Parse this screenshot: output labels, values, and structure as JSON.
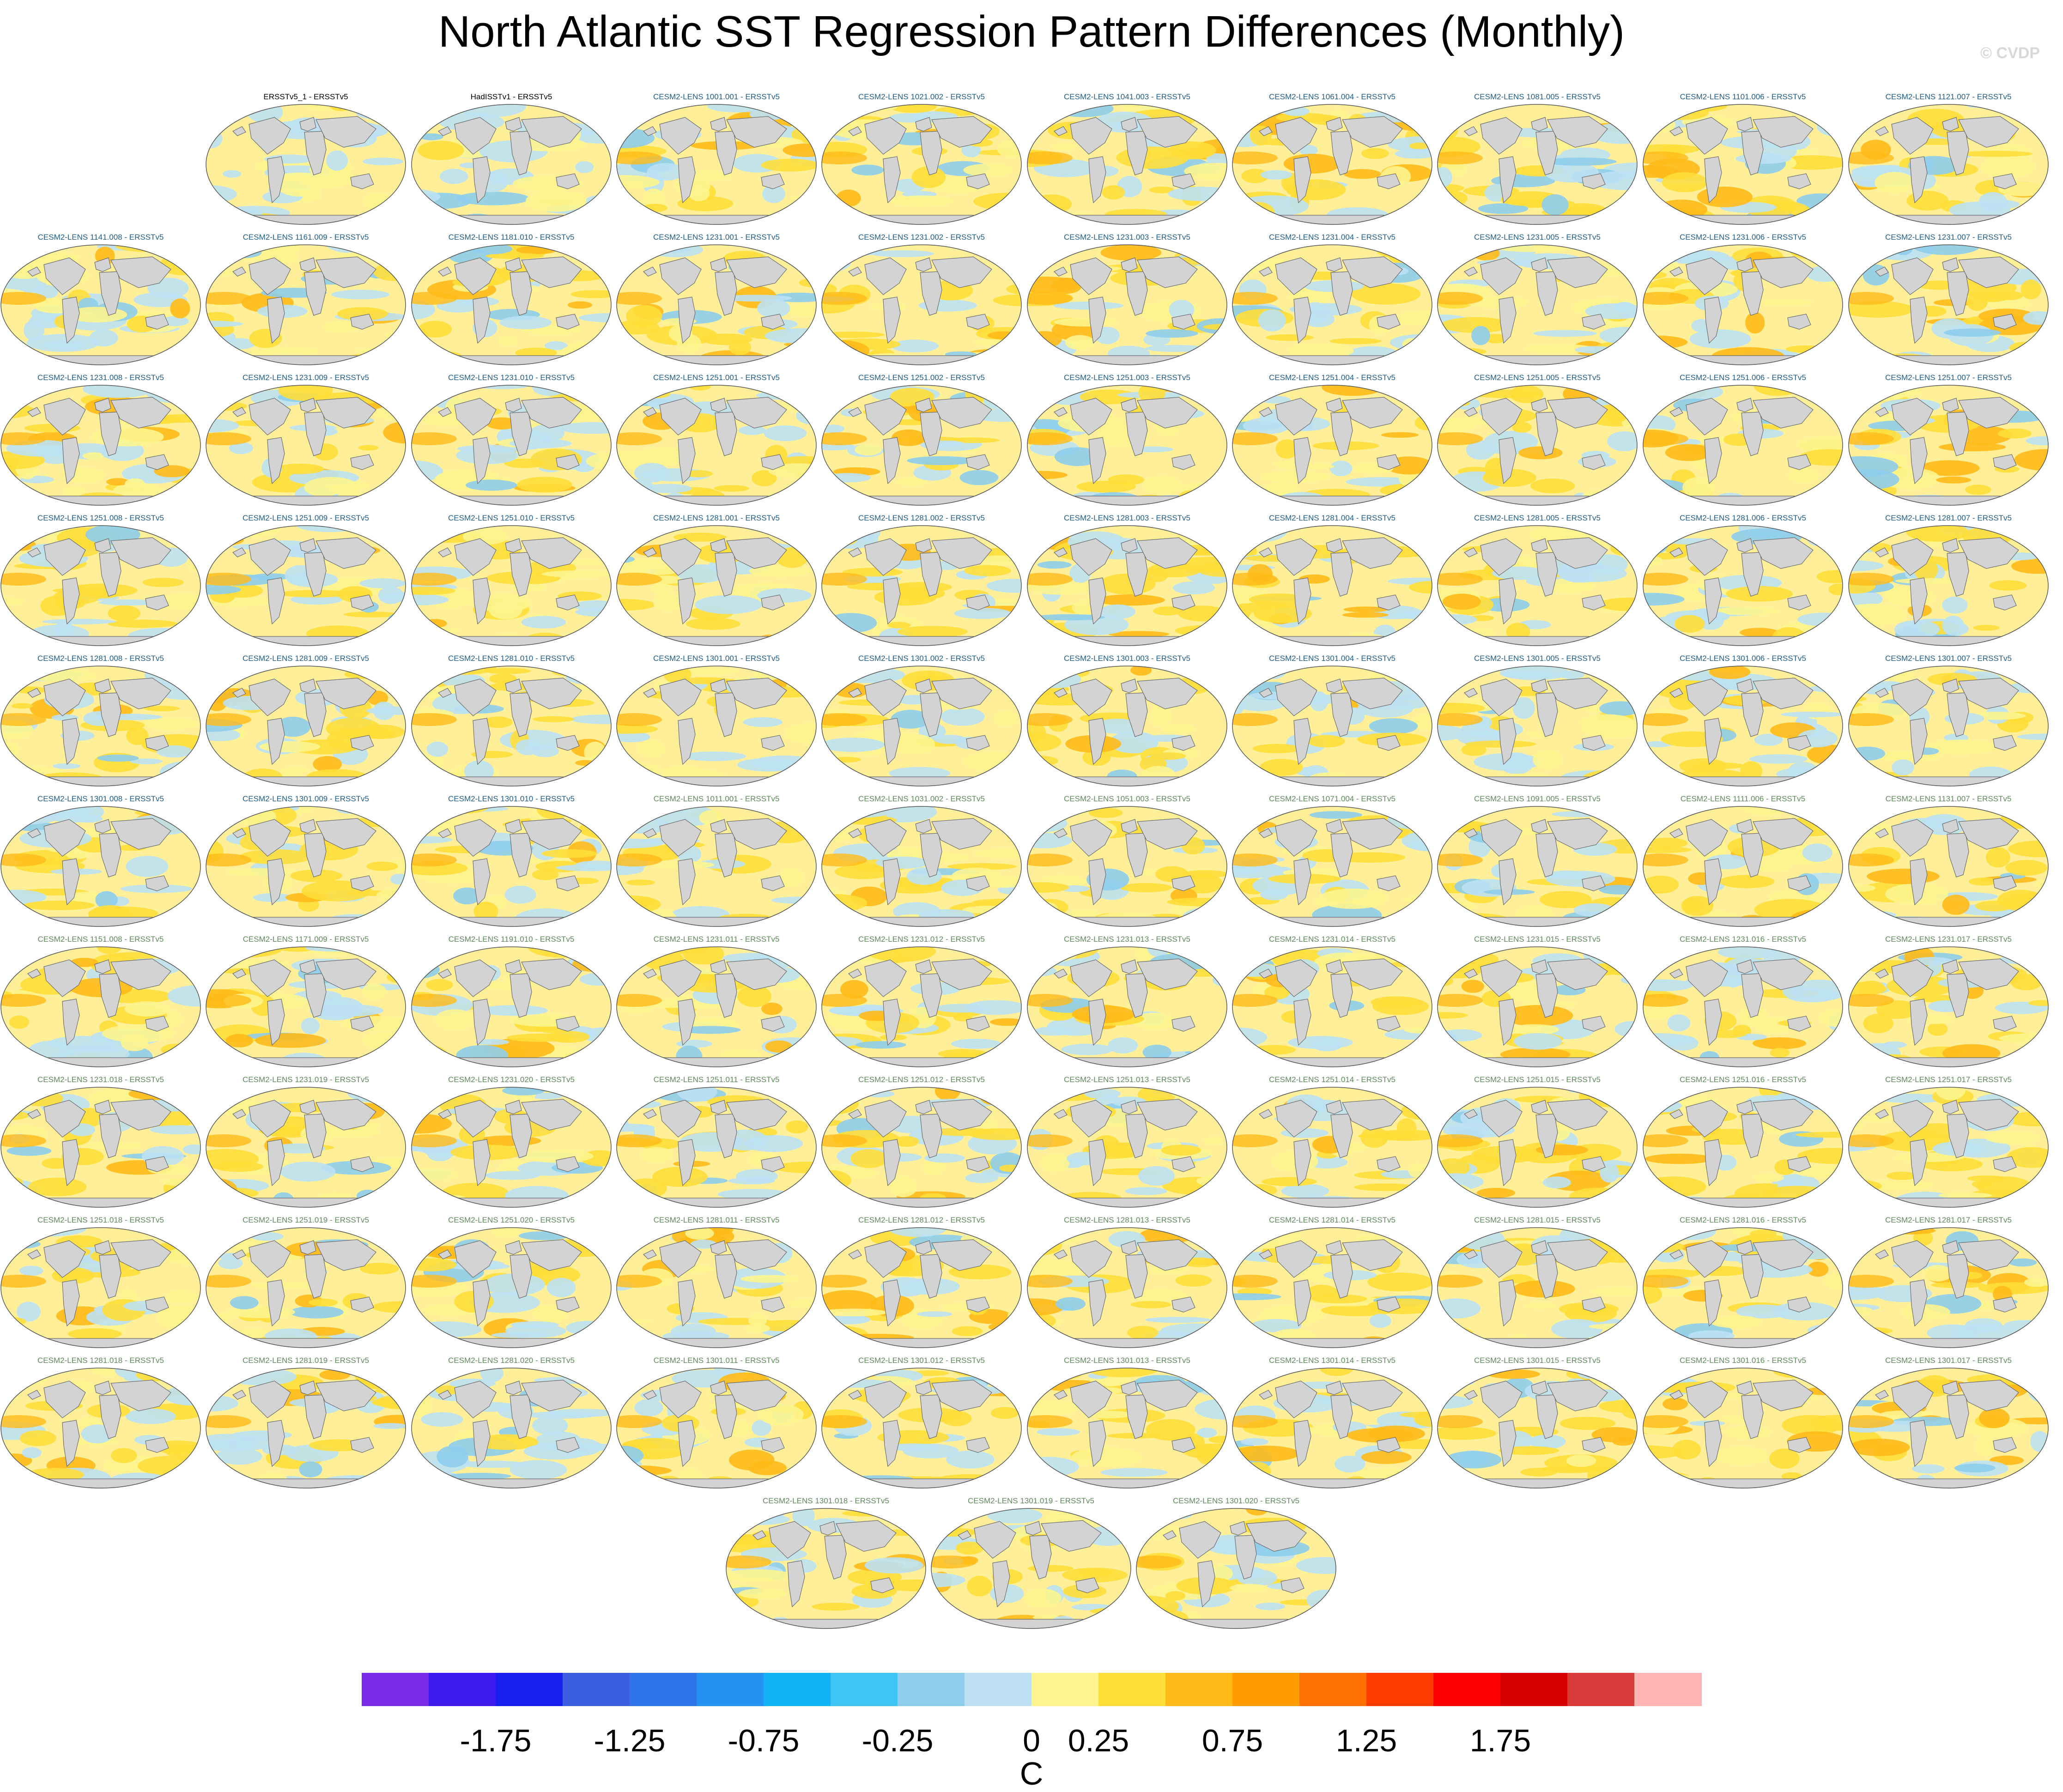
{
  "page": {
    "title": "North Atlantic SST Regression Pattern Differences (Monthly)",
    "watermark": "© CVDP"
  },
  "chart_data": {
    "type": "heatmap",
    "title": "North Atlantic SST Regression Pattern Differences (Monthly)",
    "projection": "global map panels, contour fill",
    "panels": [
      {
        "label": "ERSSTv5_1 - ERSSTv5",
        "group": "obs",
        "bias": "cool"
      },
      {
        "label": "HadISSTv1 - ERSSTv5",
        "group": "obs",
        "bias": "cool"
      },
      {
        "label": "CESM2-LENS 1001.001 - ERSSTv5",
        "group": "c1"
      },
      {
        "label": "CESM2-LENS 1021.002 - ERSSTv5",
        "group": "c1"
      },
      {
        "label": "CESM2-LENS 1041.003 - ERSSTv5",
        "group": "c1"
      },
      {
        "label": "CESM2-LENS 1061.004 - ERSSTv5",
        "group": "c1"
      },
      {
        "label": "CESM2-LENS 1081.005 - ERSSTv5",
        "group": "c1"
      },
      {
        "label": "CESM2-LENS 1101.006 - ERSSTv5",
        "group": "c1"
      },
      {
        "label": "CESM2-LENS 1121.007 - ERSSTv5",
        "group": "c1"
      },
      {
        "label": "CESM2-LENS 1141.008 - ERSSTv5",
        "group": "c1"
      },
      {
        "label": "CESM2-LENS 1161.009 - ERSSTv5",
        "group": "c1"
      },
      {
        "label": "CESM2-LENS 1181.010 - ERSSTv5",
        "group": "c1"
      },
      {
        "label": "CESM2-LENS 1231.001 - ERSSTv5",
        "group": "c1"
      },
      {
        "label": "CESM2-LENS 1231.002 - ERSSTv5",
        "group": "c1"
      },
      {
        "label": "CESM2-LENS 1231.003 - ERSSTv5",
        "group": "c1"
      },
      {
        "label": "CESM2-LENS 1231.004 - ERSSTv5",
        "group": "c1"
      },
      {
        "label": "CESM2-LENS 1231.005 - ERSSTv5",
        "group": "c1"
      },
      {
        "label": "CESM2-LENS 1231.006 - ERSSTv5",
        "group": "c1"
      },
      {
        "label": "CESM2-LENS 1231.007 - ERSSTv5",
        "group": "c1"
      },
      {
        "label": "CESM2-LENS 1231.008 - ERSSTv5",
        "group": "c1"
      },
      {
        "label": "CESM2-LENS 1231.009 - ERSSTv5",
        "group": "c1"
      },
      {
        "label": "CESM2-LENS 1231.010 - ERSSTv5",
        "group": "c1"
      },
      {
        "label": "CESM2-LENS 1251.001 - ERSSTv5",
        "group": "c1"
      },
      {
        "label": "CESM2-LENS 1251.002 - ERSSTv5",
        "group": "c1"
      },
      {
        "label": "CESM2-LENS 1251.003 - ERSSTv5",
        "group": "c1"
      },
      {
        "label": "CESM2-LENS 1251.004 - ERSSTv5",
        "group": "c1"
      },
      {
        "label": "CESM2-LENS 1251.005 - ERSSTv5",
        "group": "c1"
      },
      {
        "label": "CESM2-LENS 1251.006 - ERSSTv5",
        "group": "c1"
      },
      {
        "label": "CESM2-LENS 1251.007 - ERSSTv5",
        "group": "c1"
      },
      {
        "label": "CESM2-LENS 1251.008 - ERSSTv5",
        "group": "c1"
      },
      {
        "label": "CESM2-LENS 1251.009 - ERSSTv5",
        "group": "c1"
      },
      {
        "label": "CESM2-LENS 1251.010 - ERSSTv5",
        "group": "c1"
      },
      {
        "label": "CESM2-LENS 1281.001 - ERSSTv5",
        "group": "c1"
      },
      {
        "label": "CESM2-LENS 1281.002 - ERSSTv5",
        "group": "c1"
      },
      {
        "label": "CESM2-LENS 1281.003 - ERSSTv5",
        "group": "c1"
      },
      {
        "label": "CESM2-LENS 1281.004 - ERSSTv5",
        "group": "c1"
      },
      {
        "label": "CESM2-LENS 1281.005 - ERSSTv5",
        "group": "c1"
      },
      {
        "label": "CESM2-LENS 1281.006 - ERSSTv5",
        "group": "c1"
      },
      {
        "label": "CESM2-LENS 1281.007 - ERSSTv5",
        "group": "c1"
      },
      {
        "label": "CESM2-LENS 1281.008 - ERSSTv5",
        "group": "c1"
      },
      {
        "label": "CESM2-LENS 1281.009 - ERSSTv5",
        "group": "c1"
      },
      {
        "label": "CESM2-LENS 1281.010 - ERSSTv5",
        "group": "c1"
      },
      {
        "label": "CESM2-LENS 1301.001 - ERSSTv5",
        "group": "c1"
      },
      {
        "label": "CESM2-LENS 1301.002 - ERSSTv5",
        "group": "c1"
      },
      {
        "label": "CESM2-LENS 1301.003 - ERSSTv5",
        "group": "c1"
      },
      {
        "label": "CESM2-LENS 1301.004 - ERSSTv5",
        "group": "c1"
      },
      {
        "label": "CESM2-LENS 1301.005 - ERSSTv5",
        "group": "c1"
      },
      {
        "label": "CESM2-LENS 1301.006 - ERSSTv5",
        "group": "c1"
      },
      {
        "label": "CESM2-LENS 1301.007 - ERSSTv5",
        "group": "c1"
      },
      {
        "label": "CESM2-LENS 1301.008 - ERSSTv5",
        "group": "c1"
      },
      {
        "label": "CESM2-LENS 1301.009 - ERSSTv5",
        "group": "c1"
      },
      {
        "label": "CESM2-LENS 1301.010 - ERSSTv5",
        "group": "c1"
      },
      {
        "label": "CESM2-LENS 1011.001 - ERSSTv5",
        "group": "c2"
      },
      {
        "label": "CESM2-LENS 1031.002 - ERSSTv5",
        "group": "c2"
      },
      {
        "label": "CESM2-LENS 1051.003 - ERSSTv5",
        "group": "c2"
      },
      {
        "label": "CESM2-LENS 1071.004 - ERSSTv5",
        "group": "c2"
      },
      {
        "label": "CESM2-LENS 1091.005 - ERSSTv5",
        "group": "c2"
      },
      {
        "label": "CESM2-LENS 1111.006 - ERSSTv5",
        "group": "c2"
      },
      {
        "label": "CESM2-LENS 1131.007 - ERSSTv5",
        "group": "c2"
      },
      {
        "label": "CESM2-LENS 1151.008 - ERSSTv5",
        "group": "c2"
      },
      {
        "label": "CESM2-LENS 1171.009 - ERSSTv5",
        "group": "c2"
      },
      {
        "label": "CESM2-LENS 1191.010 - ERSSTv5",
        "group": "c2"
      },
      {
        "label": "CESM2-LENS 1231.011 - ERSSTv5",
        "group": "c2"
      },
      {
        "label": "CESM2-LENS 1231.012 - ERSSTv5",
        "group": "c2"
      },
      {
        "label": "CESM2-LENS 1231.013 - ERSSTv5",
        "group": "c2"
      },
      {
        "label": "CESM2-LENS 1231.014 - ERSSTv5",
        "group": "c2"
      },
      {
        "label": "CESM2-LENS 1231.015 - ERSSTv5",
        "group": "c2"
      },
      {
        "label": "CESM2-LENS 1231.016 - ERSSTv5",
        "group": "c2"
      },
      {
        "label": "CESM2-LENS 1231.017 - ERSSTv5",
        "group": "c2"
      },
      {
        "label": "CESM2-LENS 1231.018 - ERSSTv5",
        "group": "c2"
      },
      {
        "label": "CESM2-LENS 1231.019 - ERSSTv5",
        "group": "c2"
      },
      {
        "label": "CESM2-LENS 1231.020 - ERSSTv5",
        "group": "c2"
      },
      {
        "label": "CESM2-LENS 1251.011 - ERSSTv5",
        "group": "c2"
      },
      {
        "label": "CESM2-LENS 1251.012 - ERSSTv5",
        "group": "c2"
      },
      {
        "label": "CESM2-LENS 1251.013 - ERSSTv5",
        "group": "c2"
      },
      {
        "label": "CESM2-LENS 1251.014 - ERSSTv5",
        "group": "c2"
      },
      {
        "label": "CESM2-LENS 1251.015 - ERSSTv5",
        "group": "c2"
      },
      {
        "label": "CESM2-LENS 1251.016 - ERSSTv5",
        "group": "c2"
      },
      {
        "label": "CESM2-LENS 1251.017 - ERSSTv5",
        "group": "c2"
      },
      {
        "label": "CESM2-LENS 1251.018 - ERSSTv5",
        "group": "c2"
      },
      {
        "label": "CESM2-LENS 1251.019 - ERSSTv5",
        "group": "c2"
      },
      {
        "label": "CESM2-LENS 1251.020 - ERSSTv5",
        "group": "c2"
      },
      {
        "label": "CESM2-LENS 1281.011 - ERSSTv5",
        "group": "c2"
      },
      {
        "label": "CESM2-LENS 1281.012 - ERSSTv5",
        "group": "c2"
      },
      {
        "label": "CESM2-LENS 1281.013 - ERSSTv5",
        "group": "c2"
      },
      {
        "label": "CESM2-LENS 1281.014 - ERSSTv5",
        "group": "c2"
      },
      {
        "label": "CESM2-LENS 1281.015 - ERSSTv5",
        "group": "c2"
      },
      {
        "label": "CESM2-LENS 1281.016 - ERSSTv5",
        "group": "c2"
      },
      {
        "label": "CESM2-LENS 1281.017 - ERSSTv5",
        "group": "c2"
      },
      {
        "label": "CESM2-LENS 1281.018 - ERSSTv5",
        "group": "c2"
      },
      {
        "label": "CESM2-LENS 1281.019 - ERSSTv5",
        "group": "c2"
      },
      {
        "label": "CESM2-LENS 1281.020 - ERSSTv5",
        "group": "c2",
        "bias": "cool"
      },
      {
        "label": "CESM2-LENS 1301.011 - ERSSTv5",
        "group": "c2"
      },
      {
        "label": "CESM2-LENS 1301.012 - ERSSTv5",
        "group": "c2"
      },
      {
        "label": "CESM2-LENS 1301.013 - ERSSTv5",
        "group": "c2"
      },
      {
        "label": "CESM2-LENS 1301.014 - ERSSTv5",
        "group": "c2"
      },
      {
        "label": "CESM2-LENS 1301.015 - ERSSTv5",
        "group": "c2"
      },
      {
        "label": "CESM2-LENS 1301.016 - ERSSTv5",
        "group": "c2"
      },
      {
        "label": "CESM2-LENS 1301.017 - ERSSTv5",
        "group": "c2"
      },
      {
        "label": "CESM2-LENS 1301.018 - ERSSTv5",
        "group": "c2"
      },
      {
        "label": "CESM2-LENS 1301.019 - ERSSTv5",
        "group": "c2"
      },
      {
        "label": "CESM2-LENS 1301.020 - ERSSTv5",
        "group": "c2"
      }
    ],
    "colorbar": {
      "unit": "C",
      "levels": [
        -2,
        -1.75,
        -1.5,
        -1.25,
        -1,
        -0.75,
        -0.5,
        -0.25,
        0,
        0.25,
        0.5,
        0.75,
        1,
        1.25,
        1.5,
        1.75,
        2
      ],
      "tick_labels": [
        "-1.75",
        "-1.25",
        "-0.75",
        "-0.25",
        "0",
        "0.25",
        "0.75",
        "1.25",
        "1.75"
      ],
      "colors": [
        "#7b2bea",
        "#3c1af0",
        "#1621f0",
        "#3b5fe0",
        "#2f73e8",
        "#2591f0",
        "#11b3f5",
        "#40c3f5",
        "#8ecdec",
        "#bde1f3",
        "#fdf48e",
        "#ffde3a",
        "#ffba18",
        "#ff9d00",
        "#ff7100",
        "#ff3a00",
        "#ff0000",
        "#d60000",
        "#d93b3b",
        "#ffb3b3"
      ]
    },
    "map_colors": {
      "ocean_neutral": "#ffef99",
      "land": "#d3d3d3",
      "coast": "#6b6b6b"
    }
  }
}
